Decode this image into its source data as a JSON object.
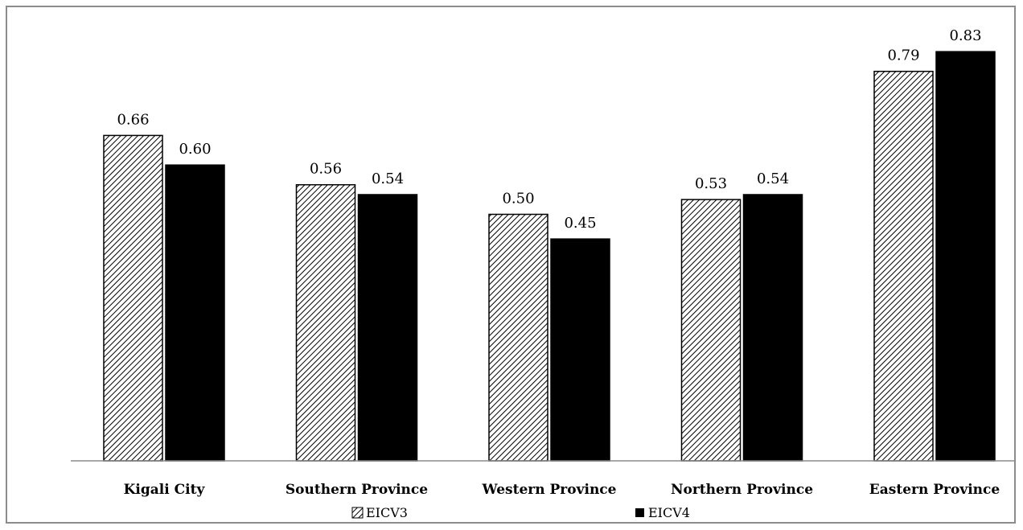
{
  "chart_data": {
    "type": "bar",
    "categories": [
      "Kigali City",
      "Southern Province",
      "Western Province",
      "Northern Province",
      "Eastern Province"
    ],
    "series": [
      {
        "name": "EICV3",
        "values": [
          0.66,
          0.56,
          0.5,
          0.53,
          0.79
        ],
        "labels": [
          "0.66",
          "0.56",
          "0.50",
          "0.53",
          "0.79"
        ],
        "fill": "hatched"
      },
      {
        "name": "EICV4",
        "values": [
          0.6,
          0.54,
          0.45,
          0.54,
          0.83
        ],
        "labels": [
          "0.60",
          "0.54",
          "0.45",
          "0.54",
          "0.83"
        ],
        "fill": "solid"
      }
    ],
    "title": "",
    "xlabel": "",
    "ylabel": "",
    "ylim": [
      0,
      0.9
    ],
    "grid": false,
    "legend_position": "bottom",
    "colors": {
      "bar_fill": "#000000",
      "hatch_background": "#ffffff",
      "axis": "#8c8c8c",
      "frame": "#8c8c8c"
    }
  }
}
